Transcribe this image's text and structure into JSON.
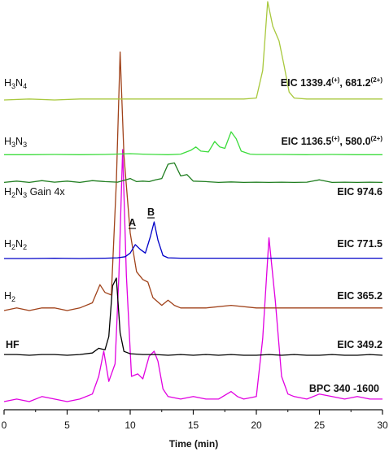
{
  "chart_data": {
    "type": "line",
    "xlabel": "Time (min)",
    "xlim": [
      0,
      30
    ],
    "xticks": [
      0,
      5,
      10,
      15,
      20,
      25,
      30
    ],
    "grid": false,
    "annotations": [
      {
        "label": "A",
        "x": 10.4
      },
      {
        "label": "B",
        "x": 11.9
      }
    ],
    "series": [
      {
        "name": "BPC 340 -1600",
        "color": "#e100e1",
        "baseline_pos": 0,
        "points": [
          [
            0,
            0
          ],
          [
            1,
            0.01
          ],
          [
            2,
            0
          ],
          [
            3,
            0.02
          ],
          [
            4,
            0.01
          ],
          [
            5,
            0
          ],
          [
            6,
            0.01
          ],
          [
            7,
            0.03
          ],
          [
            7.5,
            0.1
          ],
          [
            7.9,
            0.2
          ],
          [
            8.3,
            0.08
          ],
          [
            8.8,
            0.15
          ],
          [
            9.1,
            0.5
          ],
          [
            9.4,
            1.0
          ],
          [
            9.7,
            0.5
          ],
          [
            10.1,
            0.1
          ],
          [
            10.6,
            0.11
          ],
          [
            11,
            0.09
          ],
          [
            11.5,
            0.18
          ],
          [
            11.9,
            0.2
          ],
          [
            12.2,
            0.16
          ],
          [
            12.6,
            0.05
          ],
          [
            13,
            0.02
          ],
          [
            14,
            0.01
          ],
          [
            15,
            0.02
          ],
          [
            16,
            0.01
          ],
          [
            17,
            0.01
          ],
          [
            18,
            0.04
          ],
          [
            18.5,
            0.02
          ],
          [
            19,
            0.01
          ],
          [
            20,
            0.02
          ],
          [
            20.5,
            0.25
          ],
          [
            21,
            0.65
          ],
          [
            21.5,
            0.4
          ],
          [
            22,
            0.1
          ],
          [
            22.5,
            0.03
          ],
          [
            23,
            0.02
          ],
          [
            24,
            0.01
          ],
          [
            25,
            0.03
          ],
          [
            26,
            0.02
          ],
          [
            27,
            0.01
          ],
          [
            28,
            0.02
          ],
          [
            29,
            0.01
          ],
          [
            30,
            0.01
          ]
        ]
      },
      {
        "name": "HF",
        "color": "#000000",
        "baseline_pos": 1,
        "points": [
          [
            0,
            0.02
          ],
          [
            1,
            0.02
          ],
          [
            2,
            0.01
          ],
          [
            3,
            0.02
          ],
          [
            4,
            0.02
          ],
          [
            5,
            0.01
          ],
          [
            6,
            0.02
          ],
          [
            7,
            0.04
          ],
          [
            7.5,
            0.1
          ],
          [
            8,
            0.08
          ],
          [
            8.3,
            0.25
          ],
          [
            8.6,
            0.9
          ],
          [
            8.9,
            1.0
          ],
          [
            9.2,
            0.3
          ],
          [
            9.5,
            0.06
          ],
          [
            10,
            0.03
          ],
          [
            11,
            0.02
          ],
          [
            12,
            0.02
          ],
          [
            13,
            0.01
          ],
          [
            14,
            0.02
          ],
          [
            15,
            0.01
          ],
          [
            16,
            0.02
          ],
          [
            17,
            0.01
          ],
          [
            18,
            0.02
          ],
          [
            19,
            0.01
          ],
          [
            20,
            0.01
          ],
          [
            21,
            0.02
          ],
          [
            22,
            0.01
          ],
          [
            23,
            0.02
          ],
          [
            24,
            0.01
          ],
          [
            25,
            0.01
          ],
          [
            26,
            0.02
          ],
          [
            27,
            0.01
          ],
          [
            28,
            0.01
          ],
          [
            29,
            0.02
          ],
          [
            30,
            0.01
          ]
        ]
      },
      {
        "name": "H2",
        "color": "#a0421a",
        "baseline_pos": 2,
        "points": [
          [
            0,
            0
          ],
          [
            1,
            0.01
          ],
          [
            2,
            0
          ],
          [
            3,
            0.01
          ],
          [
            4,
            0.01
          ],
          [
            5,
            0
          ],
          [
            6,
            0.01
          ],
          [
            7,
            0.03
          ],
          [
            7.6,
            0.1
          ],
          [
            8,
            0.07
          ],
          [
            8.5,
            0.06
          ],
          [
            8.9,
            0.5
          ],
          [
            9.2,
            1.0
          ],
          [
            9.5,
            0.6
          ],
          [
            10,
            0.3
          ],
          [
            10.5,
            0.15
          ],
          [
            11,
            0.12
          ],
          [
            11.4,
            0.11
          ],
          [
            11.8,
            0.05
          ],
          [
            12.5,
            0.02
          ],
          [
            13,
            0.04
          ],
          [
            13.5,
            0.02
          ],
          [
            14,
            0.01
          ],
          [
            16,
            0.01
          ],
          [
            18,
            0.02
          ],
          [
            20,
            0.01
          ],
          [
            22,
            0.01
          ],
          [
            24,
            0.01
          ],
          [
            26,
            0.01
          ],
          [
            28,
            0.01
          ],
          [
            30,
            0.01
          ]
        ]
      },
      {
        "name": "H2N2",
        "color": "#0000c8",
        "baseline_pos": 3,
        "points": [
          [
            0,
            0
          ],
          [
            2,
            0
          ],
          [
            4,
            0.01
          ],
          [
            6,
            0
          ],
          [
            8,
            0.01
          ],
          [
            9,
            0.02
          ],
          [
            9.6,
            0.05
          ],
          [
            10,
            0.15
          ],
          [
            10.4,
            0.38
          ],
          [
            10.8,
            0.25
          ],
          [
            11.2,
            0.15
          ],
          [
            11.6,
            0.6
          ],
          [
            11.9,
            1.0
          ],
          [
            12.2,
            0.5
          ],
          [
            12.6,
            0.08
          ],
          [
            13,
            0.02
          ],
          [
            14,
            0.01
          ],
          [
            16,
            0.01
          ],
          [
            18,
            0.01
          ],
          [
            20,
            0.01
          ],
          [
            22,
            0.01
          ],
          [
            24,
            0.01
          ],
          [
            26,
            0.01
          ],
          [
            28,
            0.01
          ],
          [
            30,
            0.01
          ]
        ]
      },
      {
        "name": "H2N3 Gain 4x",
        "color": "#1e7d1e",
        "baseline_pos": 4,
        "points": [
          [
            0,
            0.05
          ],
          [
            1,
            0.1
          ],
          [
            2,
            0.05
          ],
          [
            3,
            0.12
          ],
          [
            4,
            0.06
          ],
          [
            5,
            0.1
          ],
          [
            6,
            0.05
          ],
          [
            7,
            0.12
          ],
          [
            8,
            0.08
          ],
          [
            9,
            0.06
          ],
          [
            10,
            0.2
          ],
          [
            10.5,
            0.08
          ],
          [
            11,
            0.1
          ],
          [
            11.5,
            0.08
          ],
          [
            12,
            0.15
          ],
          [
            12.5,
            0.2
          ],
          [
            13,
            0.75
          ],
          [
            13.5,
            0.8
          ],
          [
            14,
            0.3
          ],
          [
            14.5,
            0.35
          ],
          [
            15,
            0.1
          ],
          [
            16,
            0.08
          ],
          [
            17,
            0.05
          ],
          [
            18,
            0.07
          ],
          [
            19,
            0.05
          ],
          [
            20,
            0.06
          ],
          [
            21,
            0.05
          ],
          [
            22,
            0.06
          ],
          [
            23,
            0.05
          ],
          [
            24,
            0.06
          ],
          [
            25,
            0.15
          ],
          [
            26,
            0.05
          ],
          [
            27,
            0.06
          ],
          [
            28,
            0.05
          ],
          [
            29,
            0.06
          ],
          [
            30,
            0.05
          ]
        ]
      },
      {
        "name": "H3N3",
        "color": "#3cdc3c",
        "baseline_pos": 5,
        "points": [
          [
            0,
            0.02
          ],
          [
            2,
            0.02
          ],
          [
            4,
            0.03
          ],
          [
            6,
            0.02
          ],
          [
            8,
            0.03
          ],
          [
            10,
            0.06
          ],
          [
            11,
            0.04
          ],
          [
            12,
            0.03
          ],
          [
            13,
            0.02
          ],
          [
            14,
            0.04
          ],
          [
            14.8,
            0.18
          ],
          [
            15.2,
            0.3
          ],
          [
            15.6,
            0.15
          ],
          [
            16.2,
            0.12
          ],
          [
            16.7,
            0.5
          ],
          [
            17.1,
            0.3
          ],
          [
            17.5,
            0.25
          ],
          [
            18,
            0.85
          ],
          [
            18.4,
            0.6
          ],
          [
            18.8,
            0.15
          ],
          [
            19.5,
            0.04
          ],
          [
            20,
            0.03
          ],
          [
            22,
            0.03
          ],
          [
            24,
            0.02
          ],
          [
            26,
            0.03
          ],
          [
            28,
            0.02
          ],
          [
            30,
            0.02
          ]
        ]
      },
      {
        "name": "H3N4",
        "color": "#a8c83c",
        "baseline_pos": 6,
        "points": [
          [
            0,
            0
          ],
          [
            2,
            0.01
          ],
          [
            4,
            0
          ],
          [
            6,
            0.01
          ],
          [
            8,
            0.01
          ],
          [
            10,
            0.01
          ],
          [
            12,
            0.01
          ],
          [
            14,
            0.01
          ],
          [
            16,
            0.01
          ],
          [
            18,
            0.01
          ],
          [
            19,
            0.01
          ],
          [
            20,
            0.02
          ],
          [
            20.5,
            0.3
          ],
          [
            20.9,
            1.0
          ],
          [
            21.3,
            0.75
          ],
          [
            21.8,
            0.6
          ],
          [
            22.2,
            0.35
          ],
          [
            22.6,
            0.08
          ],
          [
            23,
            0.02
          ],
          [
            24,
            0.01
          ],
          [
            26,
            0.01
          ],
          [
            28,
            0.01
          ],
          [
            30,
            0.01
          ]
        ]
      }
    ]
  },
  "labels": {
    "h3n4_pre": "H",
    "h3n4_s1": "3",
    "h3n4_mid": "N",
    "h3n4_s2": "4",
    "h3n3_pre": "H",
    "h3n3_s1": "3",
    "h3n3_mid": "N",
    "h3n3_s2": "3",
    "h2n3_pre": "H",
    "h2n3_s1": "2",
    "h2n3_mid": "N",
    "h2n3_s2": "3",
    "h2n3_post": " Gain 4x",
    "h2n2_pre": "H",
    "h2n2_s1": "2",
    "h2n2_mid": "N",
    "h2n2_s2": "2",
    "h2_pre": "H",
    "h2_s1": "2",
    "hf": "HF"
  },
  "eic": {
    "h3n4_a": "EIC 1339.4",
    "h3n4_sup1": "(+)",
    "h3n4_b": ", 681.2",
    "h3n4_sup2": "(2+)",
    "h3n3_a": "EIC 1136.5",
    "h3n3_sup1": "(+)",
    "h3n3_b": ", 580.0",
    "h3n3_sup2": "(2+)",
    "h2n3": "EIC 974.6",
    "h2n2": "EIC 771.5",
    "h2": "EIC 365.2",
    "hf": "EIC 349.2",
    "bpc": "BPC 340 -1600"
  },
  "xaxis": {
    "title": "Time (min)",
    "ticks": [
      "0",
      "5",
      "10",
      "15",
      "20",
      "25",
      "30"
    ]
  }
}
